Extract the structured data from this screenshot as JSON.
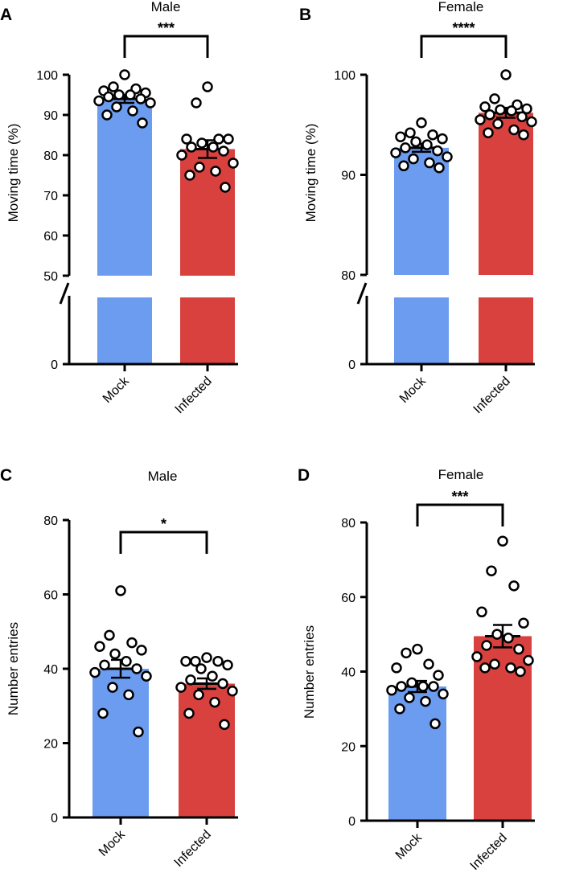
{
  "colors": {
    "mock": "#6b9cf0",
    "infected": "#d9413f",
    "axis": "#000000"
  },
  "chart_data": [
    {
      "panel": "A",
      "type": "bar",
      "title": "Male",
      "ylabel": "Moving time (%)",
      "categories": [
        "Mock",
        "Infected"
      ],
      "ylim": [
        0,
        100
      ],
      "axis_break": {
        "lower_max": 0,
        "upper_min": 50,
        "upper_max": 100
      },
      "yticks": [
        0,
        50,
        60,
        70,
        80,
        90,
        100
      ],
      "values": [
        94,
        81.5
      ],
      "sem": [
        1.0,
        2.2
      ],
      "points": [
        [
          100,
          97,
          96.5,
          96,
          95.5,
          95,
          95,
          94.5,
          94,
          93.5,
          93,
          92,
          91,
          90,
          88
        ],
        [
          97,
          93,
          84,
          84,
          84,
          83,
          82,
          82,
          81,
          80,
          78,
          77,
          76,
          75,
          72
        ]
      ],
      "significance": "***"
    },
    {
      "panel": "B",
      "type": "bar",
      "title": "Female",
      "ylabel": "Moving time (%)",
      "categories": [
        "Mock",
        "Infected"
      ],
      "ylim": [
        0,
        100
      ],
      "axis_break": {
        "lower_max": 0,
        "upper_min": 80,
        "upper_max": 100
      },
      "yticks": [
        0,
        80,
        90,
        100
      ],
      "values": [
        92.7,
        96.2
      ],
      "sem": [
        0.4,
        0.5
      ],
      "points": [
        [
          95.2,
          94.2,
          94.0,
          93.8,
          93.6,
          93.3,
          93.0,
          92.7,
          92.4,
          92.2,
          91.8,
          91.6,
          91.2,
          90.9,
          90.7
        ],
        [
          100,
          97.6,
          97.0,
          96.8,
          96.6,
          96.5,
          96.4,
          96.0,
          95.8,
          95.5,
          95.3,
          95.1,
          94.5,
          94.2,
          94.0
        ]
      ],
      "significance": "****"
    },
    {
      "panel": "C",
      "type": "bar",
      "title": "Male",
      "ylabel": "Number entries",
      "categories": [
        "Mock",
        "Infected"
      ],
      "ylim": [
        0,
        80
      ],
      "axis_break": null,
      "yticks": [
        0,
        20,
        40,
        60,
        80
      ],
      "values": [
        40,
        36
      ],
      "sem": [
        2.4,
        1.4
      ],
      "points": [
        [
          61,
          49,
          47,
          46,
          45,
          44,
          42,
          41,
          40,
          39,
          38,
          35,
          33,
          28,
          23
        ],
        [
          43,
          42,
          42,
          42,
          41,
          40,
          38,
          37,
          36,
          35,
          34,
          33,
          31,
          28,
          25
        ]
      ],
      "significance": "*"
    },
    {
      "panel": "D",
      "type": "bar",
      "title": "Female",
      "ylabel": "Number entries",
      "categories": [
        "Mock",
        "Infected"
      ],
      "ylim": [
        0,
        80
      ],
      "axis_break": null,
      "yticks": [
        0,
        20,
        40,
        60,
        80
      ],
      "values": [
        36,
        49.5
      ],
      "sem": [
        1.5,
        3.0
      ],
      "points": [
        [
          46,
          45,
          42,
          41,
          39,
          37,
          36,
          36,
          36,
          35,
          34,
          33,
          32,
          30,
          26
        ],
        [
          75,
          67,
          63,
          56,
          53,
          50,
          49,
          47,
          46,
          44,
          43,
          42,
          41,
          41,
          40
        ]
      ],
      "significance": "***"
    }
  ]
}
